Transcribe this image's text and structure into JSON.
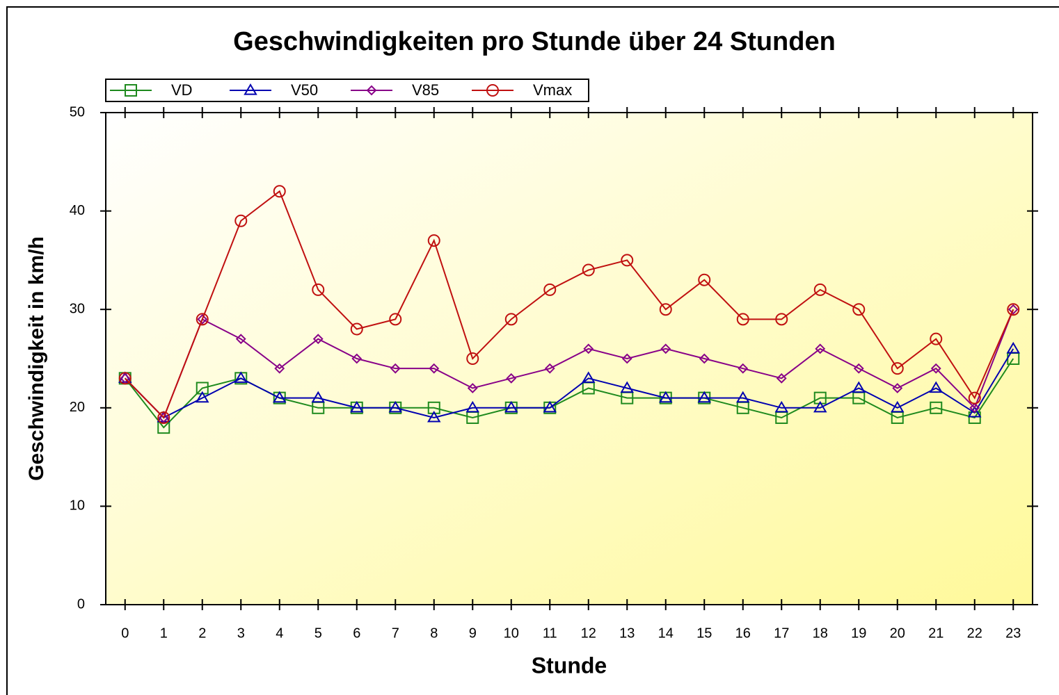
{
  "chart_data": {
    "type": "line",
    "title": "Geschwindigkeiten pro Stunde über 24 Stunden",
    "x_label": "Stunde",
    "y_label": "Geschwindigkeit in km/h",
    "x": [
      0,
      1,
      2,
      3,
      4,
      5,
      6,
      7,
      8,
      9,
      10,
      11,
      12,
      13,
      14,
      15,
      16,
      17,
      18,
      19,
      20,
      21,
      22,
      23
    ],
    "xlim": [
      -0.5,
      23.5
    ],
    "xticks": [
      0,
      1,
      2,
      3,
      4,
      5,
      6,
      7,
      8,
      9,
      10,
      11,
      12,
      13,
      14,
      15,
      16,
      17,
      18,
      19,
      20,
      21,
      22,
      23
    ],
    "ylim": [
      0,
      50
    ],
    "yticks": [
      0,
      10,
      20,
      30,
      40,
      50
    ],
    "legend": "top-left",
    "series": [
      {
        "name": "VD",
        "color": "#1e8a1e",
        "marker": "square",
        "values": [
          23,
          18,
          22,
          23,
          21,
          20,
          20,
          20,
          20,
          19,
          20,
          20,
          22,
          21,
          21,
          21,
          20,
          19,
          21,
          21,
          19,
          20,
          19,
          25
        ]
      },
      {
        "name": "V50",
        "color": "#0000b0",
        "marker": "triangle",
        "values": [
          23,
          19,
          21,
          23,
          21,
          21,
          20,
          20,
          19,
          20,
          20,
          20,
          23,
          22,
          21,
          21,
          21,
          20,
          20,
          22,
          20,
          22,
          19.5,
          26
        ]
      },
      {
        "name": "V85",
        "color": "#880088",
        "marker": "diamond",
        "values": [
          23,
          19,
          29,
          27,
          24,
          27,
          25,
          24,
          24,
          22,
          23,
          24,
          26,
          25,
          26,
          25,
          24,
          23,
          26,
          24,
          22,
          24,
          20,
          30
        ]
      },
      {
        "name": "Vmax",
        "color": "#c01010",
        "marker": "circle",
        "values": [
          23,
          19,
          29,
          39,
          42,
          32,
          28,
          29,
          37,
          25,
          29,
          32,
          34,
          35,
          30,
          33,
          29,
          29,
          32,
          30,
          24,
          27,
          21,
          30
        ]
      }
    ]
  }
}
